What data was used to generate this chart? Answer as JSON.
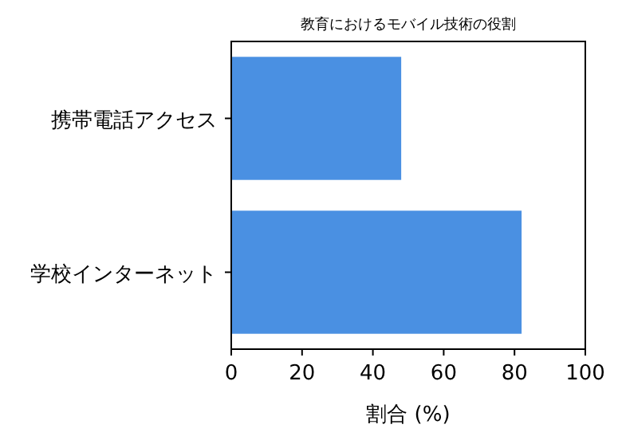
{
  "chart_data": {
    "type": "bar",
    "orientation": "horizontal",
    "title": "教育におけるモバイル技術の役割",
    "xlabel": "割合 (%)",
    "categories": [
      "携帯電話アクセス",
      "学校インターネット"
    ],
    "values": [
      48,
      82
    ],
    "color": "#4a90e2",
    "xlim": [
      0,
      100
    ],
    "xticks": [
      0,
      20,
      40,
      60,
      80,
      100
    ],
    "grid": false
  }
}
